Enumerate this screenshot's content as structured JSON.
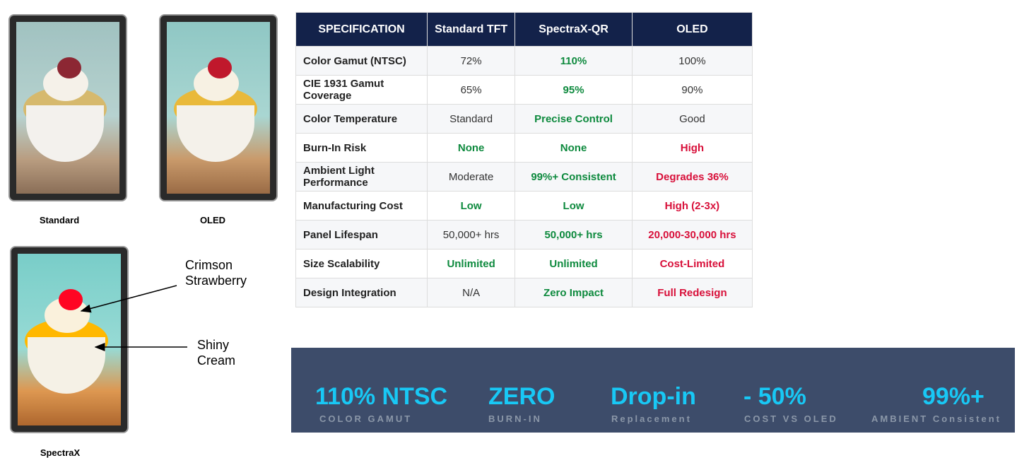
{
  "images": [
    {
      "label": "Standard"
    },
    {
      "label": "OLED"
    },
    {
      "label": "SpectraX"
    }
  ],
  "annotations": [
    {
      "text": "Crimson Strawberry"
    },
    {
      "text": "Shiny Cream"
    }
  ],
  "table": {
    "header_color": "#13224a",
    "header": [
      "SPECIFICATION",
      "Standard TFT",
      "SpectraX-QR",
      "OLED"
    ],
    "rows": [
      {
        "cells": [
          {
            "text": "Color Gamut (NTSC)"
          },
          {
            "text": "72%"
          },
          {
            "text": "110%",
            "color": "#0e8a3e"
          },
          {
            "text": "100%"
          }
        ]
      },
      {
        "cells": [
          {
            "text": "CIE 1931 Gamut Coverage"
          },
          {
            "text": "65%"
          },
          {
            "text": "95%",
            "color": "#0e8a3e"
          },
          {
            "text": "90%"
          }
        ]
      },
      {
        "cells": [
          {
            "text": "Color Temperature"
          },
          {
            "text": "Standard"
          },
          {
            "text": "Precise Control",
            "color": "#0e8a3e"
          },
          {
            "text": "Good"
          }
        ]
      },
      {
        "cells": [
          {
            "text": "Burn-In Risk"
          },
          {
            "text": "None",
            "color": "#0e8a3e"
          },
          {
            "text": "None",
            "color": "#0e8a3e"
          },
          {
            "text": "High",
            "color": "#d8103a"
          }
        ]
      },
      {
        "cells": [
          {
            "text": "Ambient Light Performance"
          },
          {
            "text": "Moderate"
          },
          {
            "text": "99%+ Consistent",
            "color": "#0e8a3e"
          },
          {
            "text": "Degrades 36%",
            "color": "#d8103a"
          }
        ]
      },
      {
        "cells": [
          {
            "text": "Manufacturing Cost"
          },
          {
            "text": "Low",
            "color": "#0e8a3e"
          },
          {
            "text": "Low",
            "color": "#0e8a3e"
          },
          {
            "text": "High (2-3x)",
            "color": "#d8103a"
          }
        ]
      },
      {
        "cells": [
          {
            "text": "Panel Lifespan"
          },
          {
            "text": "50,000+ hrs"
          },
          {
            "text": "50,000+ hrs",
            "color": "#0e8a3e"
          },
          {
            "text": "20,000-30,000 hrs",
            "color": "#d8103a"
          }
        ]
      },
      {
        "cells": [
          {
            "text": "Size Scalability"
          },
          {
            "text": "Unlimited",
            "color": "#0e8a3e"
          },
          {
            "text": "Unlimited",
            "color": "#0e8a3e"
          },
          {
            "text": "Cost-Limited",
            "color": "#d8103a"
          }
        ]
      },
      {
        "cells": [
          {
            "text": "Design Integration"
          },
          {
            "text": "N/A"
          },
          {
            "text": "Zero Impact",
            "color": "#0e8a3e"
          },
          {
            "text": "Full Redesign",
            "color": "#d8103a"
          }
        ]
      }
    ]
  },
  "stats": [
    {
      "value": "110% NTSC",
      "label": "COLOR GAMUT"
    },
    {
      "value": "ZERO",
      "label": "BURN-IN"
    },
    {
      "value": "Drop-in",
      "label": "Replacement"
    },
    {
      "value": "- 50%",
      "label": "COST VS OLED"
    },
    {
      "value": "99%+",
      "label": "AMBIENT Consistent"
    }
  ]
}
